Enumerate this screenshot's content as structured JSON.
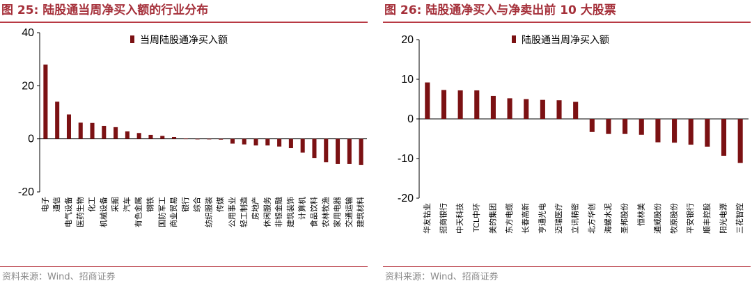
{
  "source_text": "资料来源：Wind、招商证券",
  "chart_data": [
    {
      "type": "bar",
      "title": "图 25:  陆股通当周净买入额的行业分布",
      "ylim": [
        -20,
        40
      ],
      "yticks": [
        40,
        20,
        0,
        -20
      ],
      "legend_position": "top",
      "series": [
        {
          "name": "当周陆股通净买入额",
          "color": "#7b1113",
          "values": [
            28,
            14,
            9.2,
            6.1,
            6,
            4.9,
            4.4,
            2.8,
            2.2,
            1.5,
            1.1,
            0.7,
            0.1,
            0,
            0,
            -0.3,
            -1.8,
            -2.1,
            -2.5,
            -2.5,
            -2.9,
            -3.5,
            -5.2,
            -7.2,
            -8.8,
            -9.5,
            -9.5,
            -9.8
          ]
        }
      ],
      "categories": [
        "电子",
        "通信",
        "电气设备",
        "医药生物",
        "化工",
        "机械设备",
        "采掘",
        "汽车",
        "有色金属",
        "钢铁",
        "国防军工",
        "商业贸易",
        "银行",
        "综合",
        "纺织服装",
        "传媒",
        "公用事业",
        "轻工制造",
        "房地产",
        "休闲服务",
        "非银金融",
        "建筑装饰",
        "计算机",
        "食品饮料",
        "农林牧渔",
        "家用电器",
        "交通运输",
        "建筑材料"
      ]
    },
    {
      "type": "bar",
      "title": "图 26:  陆股通净买入与净卖出前 10 大股票",
      "ylim": [
        -20,
        20
      ],
      "yticks": [
        20,
        10,
        0,
        -10,
        -20
      ],
      "legend_position": "top",
      "series": [
        {
          "name": "陆股通当周净买入额",
          "color": "#7b1113",
          "values": [
            9.2,
            7.3,
            7.2,
            7.2,
            5.8,
            5.2,
            5,
            4.8,
            4.7,
            4.3,
            -3.3,
            -3.8,
            -3.8,
            -4,
            -5.9,
            -6,
            -6.5,
            -7,
            -9.3,
            -11.1
          ]
        }
      ],
      "categories": [
        "华友钴业",
        "招商银行",
        "中天科技",
        "TCL中环",
        "美的集团",
        "东方电缆",
        "长春高新",
        "亨通光电",
        "迈瑞医疗",
        "立讯精密",
        "北方华创",
        "海螺水泥",
        "圣邦股份",
        "恒林美",
        "通威股份",
        "牧原股份",
        "平安银行",
        "顺丰控股",
        "阳光电源",
        "三花智控"
      ]
    }
  ]
}
